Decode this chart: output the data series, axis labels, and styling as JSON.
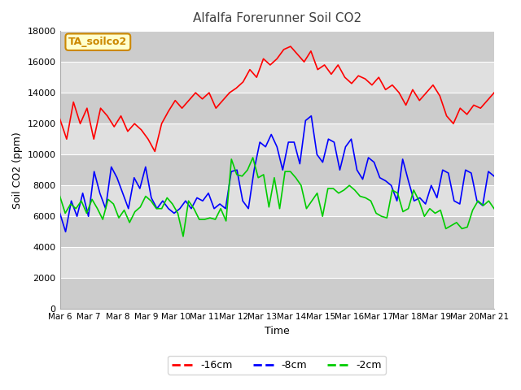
{
  "title": "Alfalfa Forerunner Soil CO2",
  "xlabel": "Time",
  "ylabel": "Soil CO2 (ppm)",
  "ylim": [
    0,
    18000
  ],
  "yticks": [
    0,
    2000,
    4000,
    6000,
    8000,
    10000,
    12000,
    14000,
    16000,
    18000
  ],
  "xtick_labels": [
    "Mar 6",
    "Mar 7",
    "Mar 8",
    "Mar 9",
    "Mar 10",
    "Mar 11",
    "Mar 12",
    "Mar 13",
    "Mar 14",
    "Mar 15",
    "Mar 16",
    "Mar 17",
    "Mar 18",
    "Mar 19",
    "Mar 20",
    "Mar 21"
  ],
  "legend_labels": [
    "-16cm",
    "-8cm",
    "-2cm"
  ],
  "line_colors": [
    "#ff0000",
    "#0000ff",
    "#00cc00"
  ],
  "annotation_text": "TA_soilco2",
  "annotation_color": "#cc8800",
  "annotation_bg": "#ffffcc",
  "bg_color": "#ffffff",
  "plot_bg": "#e0e0e0",
  "band_color": "#cccccc",
  "title_color": "#404040",
  "red_line": [
    12300,
    11000,
    13400,
    12000,
    13000,
    11000,
    13000,
    12500,
    11800,
    12500,
    11500,
    12000,
    11600,
    11000,
    10200,
    12000,
    12800,
    13500,
    13000,
    13500,
    14000,
    13600,
    14000,
    13000,
    13500,
    14000,
    14300,
    14700,
    15500,
    15000,
    16200,
    15800,
    16200,
    16800,
    17000,
    16500,
    16000,
    16700,
    15500,
    15800,
    15200,
    15800,
    15000,
    14600,
    15100,
    14900,
    14500,
    15000,
    14200,
    14500,
    14000,
    13200,
    14200,
    13500,
    14000,
    14500,
    13800,
    12500,
    12000,
    13000,
    12600,
    13200,
    13000,
    13500,
    14000
  ],
  "blue_line": [
    6200,
    5000,
    7000,
    6000,
    7500,
    6000,
    8900,
    7500,
    6500,
    9200,
    8500,
    7500,
    6500,
    8500,
    7800,
    9200,
    7200,
    6500,
    7000,
    6500,
    6200,
    6500,
    7000,
    6500,
    7200,
    7000,
    7500,
    6500,
    6800,
    6500,
    8900,
    9000,
    7000,
    6500,
    9000,
    10800,
    10500,
    11300,
    10500,
    9000,
    10800,
    10800,
    9400,
    12200,
    12500,
    10000,
    9500,
    11000,
    10800,
    9000,
    10500,
    11000,
    9000,
    8400,
    9800,
    9500,
    8500,
    8300,
    8000,
    7000,
    9700,
    8300,
    7000,
    7200,
    6800,
    8000,
    7200,
    9000,
    8800,
    7000,
    6800,
    9000,
    8800,
    7000,
    6700,
    8900,
    8600
  ],
  "green_line": [
    7300,
    6200,
    6800,
    6500,
    7000,
    6200,
    7100,
    6500,
    5800,
    7100,
    6800,
    5900,
    6400,
    5600,
    6300,
    6600,
    7300,
    7000,
    6500,
    6500,
    7200,
    6800,
    6200,
    4700,
    7000,
    6500,
    5800,
    5800,
    5900,
    5800,
    6500,
    5700,
    9700,
    8700,
    8600,
    9000,
    9800,
    8500,
    8700,
    6600,
    8500,
    6500,
    8900,
    8900,
    8500,
    8000,
    6500,
    7000,
    7500,
    6000,
    7800,
    7800,
    7500,
    7700,
    8000,
    7700,
    7300,
    7200,
    7000,
    6200,
    6000,
    5900,
    7700,
    7500,
    6300,
    6500,
    7700,
    7000,
    6000,
    6500,
    6200,
    6400,
    5200,
    5400,
    5600,
    5200,
    5300,
    6400,
    7000,
    6700,
    7000,
    6500
  ],
  "n_days": 15,
  "figsize": [
    6.4,
    4.8
  ],
  "dpi": 100
}
